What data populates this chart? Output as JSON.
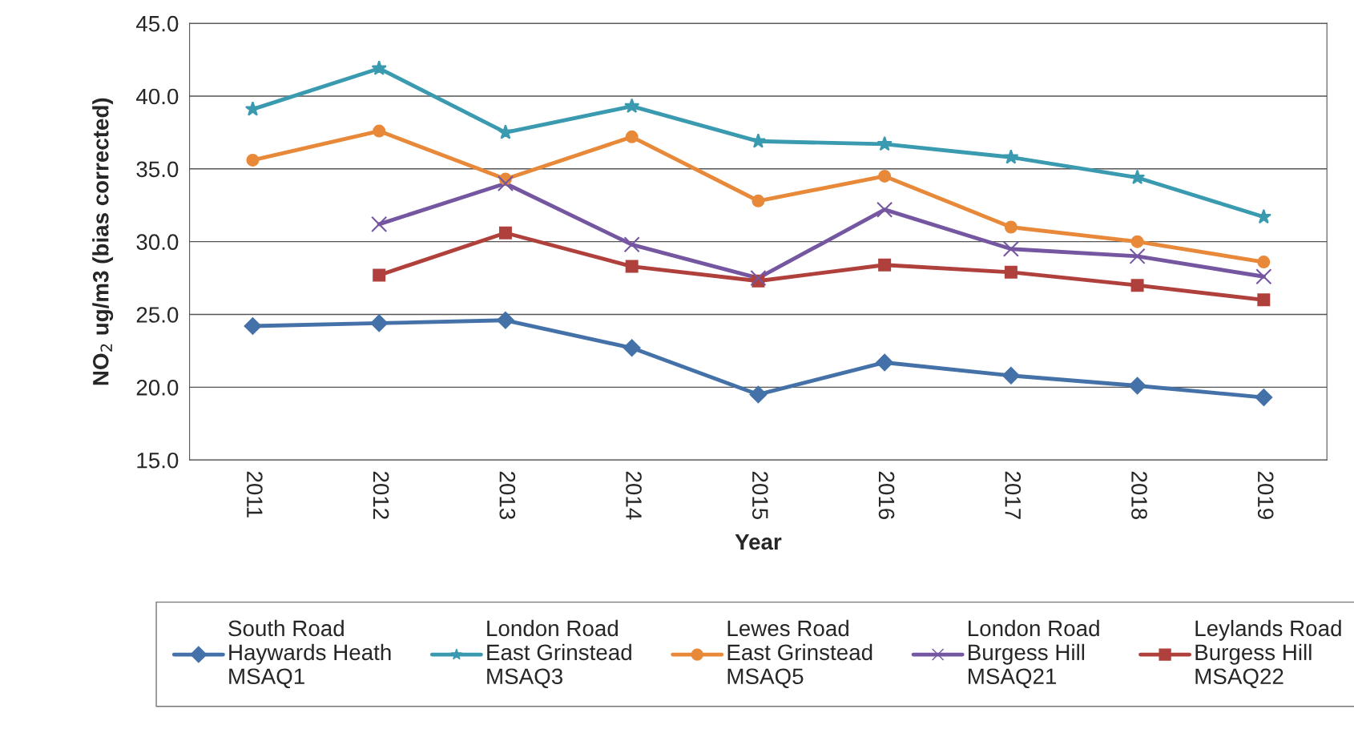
{
  "chart_data": {
    "type": "line",
    "xlabel": "Year",
    "ylabel": "NO$_{2}$ ug/m3 (bias corrected)",
    "categories": [
      "2011",
      "2012",
      "2013",
      "2014",
      "2015",
      "2016",
      "2017",
      "2018",
      "2019"
    ],
    "ylim": [
      15,
      45
    ],
    "yticks": [
      {
        "value": 15,
        "label": "15.0"
      },
      {
        "value": 20,
        "label": "20.0"
      },
      {
        "value": 25,
        "label": "25.0"
      },
      {
        "value": 30,
        "label": "30.0"
      },
      {
        "value": 35,
        "label": "35.0"
      },
      {
        "value": 40,
        "label": "40.0"
      },
      {
        "value": 45,
        "label": "45.0"
      }
    ],
    "grid": "y",
    "legend": "bottom",
    "series": [
      {
        "name": "South Road\nHaywards Heath\nMSAQ1",
        "color": "#4472a8",
        "marker": "diamond",
        "values": [
          24.2,
          24.4,
          24.6,
          22.7,
          19.5,
          21.7,
          20.8,
          20.1,
          19.3
        ]
      },
      {
        "name": "London Road\nEast Grinstead\nMSAQ3",
        "color": "#3a9ab0",
        "marker": "star",
        "values": [
          39.1,
          41.9,
          37.5,
          39.3,
          36.9,
          36.7,
          35.8,
          34.4,
          31.7
        ]
      },
      {
        "name": "Lewes Road\nEast Grinstead\nMSAQ5",
        "color": "#e8893a",
        "marker": "circle",
        "values": [
          35.6,
          37.6,
          34.3,
          37.2,
          32.8,
          34.5,
          31.0,
          30.0,
          28.6
        ]
      },
      {
        "name": "London Road\nBurgess Hill\nMSAQ21",
        "color": "#7556a0",
        "marker": "cross",
        "values": [
          null,
          31.2,
          34.0,
          29.8,
          27.5,
          32.2,
          29.5,
          29.0,
          27.6
        ]
      },
      {
        "name": "Leylands Road\nBurgess Hill\nMSAQ22",
        "color": "#b0403c",
        "marker": "square",
        "values": [
          null,
          27.7,
          30.6,
          28.3,
          27.3,
          28.4,
          27.9,
          27.0,
          26.0
        ]
      }
    ]
  }
}
